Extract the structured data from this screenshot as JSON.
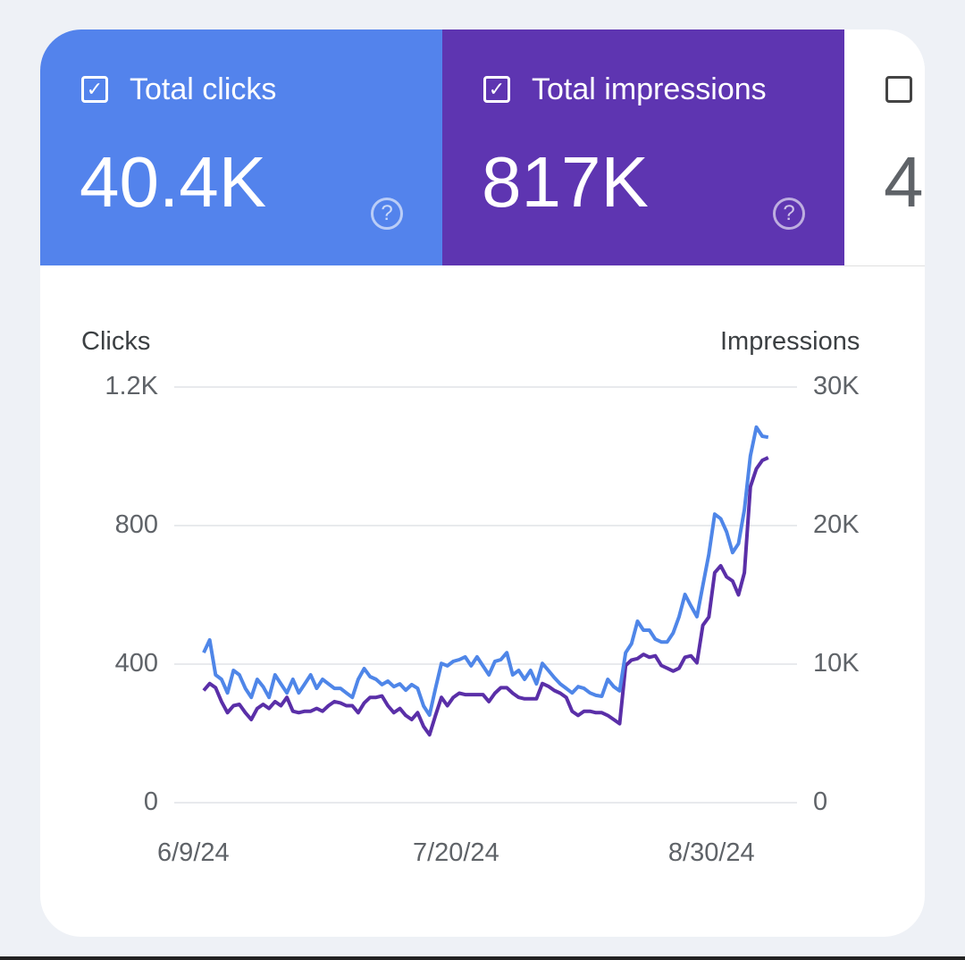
{
  "tiles": [
    {
      "label": "Total clicks",
      "value": "40.4K",
      "checked": true,
      "color": "#5383ec"
    },
    {
      "label": "Total impressions",
      "value": "817K",
      "checked": true,
      "color": "#5e35b1"
    },
    {
      "label": "",
      "value": "4",
      "checked": false
    }
  ],
  "checkmark": "✓",
  "help_glyph": "?",
  "chart_data": {
    "type": "line",
    "left_axis": {
      "title": "Clicks",
      "ticks": [
        "0",
        "400",
        "800",
        "1.2K"
      ],
      "range": [
        0,
        1200
      ]
    },
    "right_axis": {
      "title": "Impressions",
      "ticks": [
        "0",
        "10K",
        "20K",
        "30K"
      ],
      "range": [
        0,
        30000
      ]
    },
    "x_ticks": [
      {
        "label": "6/9/24",
        "index": 0
      },
      {
        "label": "7/20/24",
        "index": 43
      },
      {
        "label": "8/30/24",
        "index": 86
      }
    ],
    "grid": true,
    "series": [
      {
        "name": "Clicks",
        "axis": "left",
        "color": "#4f86e8",
        "values": [
          433,
          470,
          369,
          356,
          317,
          382,
          369,
          330,
          304,
          356,
          335,
          304,
          369,
          343,
          317,
          356,
          317,
          343,
          369,
          330,
          356,
          343,
          330,
          330,
          317,
          304,
          356,
          387,
          364,
          356,
          341,
          351,
          335,
          343,
          325,
          341,
          330,
          279,
          253,
          330,
          402,
          395,
          408,
          413,
          421,
          395,
          421,
          395,
          369,
          408,
          413,
          433,
          369,
          382,
          356,
          382,
          343,
          402,
          382,
          361,
          343,
          330,
          317,
          335,
          330,
          317,
          310,
          307,
          356,
          335,
          323,
          433,
          459,
          524,
          498,
          498,
          472,
          464,
          464,
          490,
          537,
          601,
          568,
          537,
          627,
          717,
          833,
          820,
          782,
          722,
          748,
          846,
          1001,
          1084,
          1058,
          1055
        ]
      },
      {
        "name": "Impressions",
        "axis": "right",
        "color": "#5a2fa8",
        "values": [
          8100,
          8600,
          8300,
          7300,
          6500,
          7000,
          7100,
          6500,
          6000,
          6800,
          7100,
          6800,
          7300,
          7000,
          7600,
          6600,
          6500,
          6600,
          6600,
          6800,
          6600,
          7000,
          7300,
          7200,
          7000,
          7000,
          6500,
          7200,
          7600,
          7600,
          7700,
          7000,
          6500,
          6800,
          6300,
          6000,
          6500,
          5500,
          4900,
          6300,
          7600,
          7000,
          7600,
          7900,
          7800,
          7800,
          7800,
          7800,
          7300,
          7900,
          8300,
          8300,
          7900,
          7600,
          7500,
          7500,
          7500,
          8600,
          8400,
          8100,
          7900,
          7600,
          6600,
          6300,
          6600,
          6600,
          6500,
          6500,
          6300,
          6000,
          5700,
          9900,
          10300,
          10400,
          10700,
          10500,
          10600,
          9900,
          9700,
          9500,
          9700,
          10500,
          10600,
          10100,
          12800,
          13400,
          16600,
          17100,
          16300,
          16000,
          15000,
          16600,
          22800,
          24100,
          24700,
          24900
        ]
      }
    ]
  }
}
